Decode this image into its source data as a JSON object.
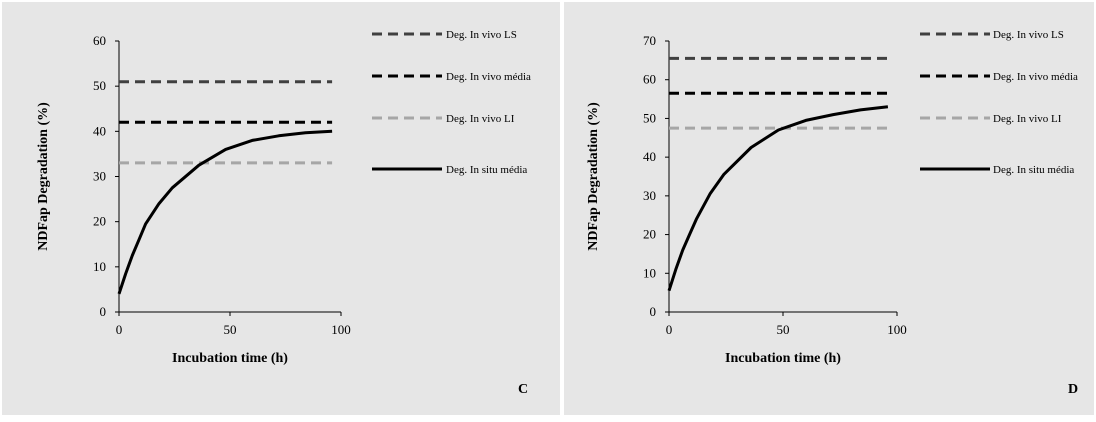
{
  "colors": {
    "panel_bg": "#e6e6e6",
    "ls_line": "#404040",
    "media_line": "#000000",
    "li_line": "#a6a6a6",
    "insitu_line": "#000000"
  },
  "chart_data": [
    {
      "type": "line",
      "panel_label": "C",
      "xlabel": "Incubation time (h)",
      "ylabel": "NDFap Degradation (%)",
      "xlim": [
        0,
        100
      ],
      "ylim": [
        0,
        60
      ],
      "xticks": [
        0,
        50,
        100
      ],
      "yticks": [
        0,
        10,
        20,
        30,
        40,
        50,
        60
      ],
      "grid": false,
      "legend_position": "right",
      "series": [
        {
          "name": "Deg. In vivo LS",
          "style": "dashed",
          "color": "#404040",
          "x": [
            0,
            96
          ],
          "y": [
            51,
            51
          ]
        },
        {
          "name": "Deg. In vivo média",
          "style": "dashed",
          "color": "#000000",
          "x": [
            0,
            96
          ],
          "y": [
            42,
            42
          ]
        },
        {
          "name": "Deg. In vivo LI",
          "style": "dashed",
          "color": "#a6a6a6",
          "x": [
            0,
            96
          ],
          "y": [
            33,
            33
          ]
        },
        {
          "name": "Deg. In situ média",
          "style": "solid",
          "color": "#000000",
          "x": [
            0,
            3,
            6,
            9,
            12,
            18,
            24,
            36,
            48,
            60,
            72,
            84,
            96
          ],
          "y": [
            4,
            8.5,
            12.5,
            16,
            19.5,
            24,
            27.5,
            32.5,
            36,
            38,
            39,
            39.7,
            40
          ]
        }
      ]
    },
    {
      "type": "line",
      "panel_label": "D",
      "xlabel": "Incubation time (h)",
      "ylabel": "NDFap Degradation (%)",
      "xlim": [
        0,
        100
      ],
      "ylim": [
        0,
        70
      ],
      "xticks": [
        0,
        50,
        100
      ],
      "yticks": [
        0,
        10,
        20,
        30,
        40,
        50,
        60,
        70
      ],
      "grid": false,
      "legend_position": "right",
      "series": [
        {
          "name": "Deg. In vivo LS",
          "style": "dashed",
          "color": "#404040",
          "x": [
            0,
            96
          ],
          "y": [
            65.5,
            65.5
          ]
        },
        {
          "name": "Deg. In vivo média",
          "style": "dashed",
          "color": "#000000",
          "x": [
            0,
            96
          ],
          "y": [
            56.5,
            56.5
          ]
        },
        {
          "name": "Deg. In vivo LI",
          "style": "dashed",
          "color": "#a6a6a6",
          "x": [
            0,
            96
          ],
          "y": [
            47.5,
            47.5
          ]
        },
        {
          "name": "Deg. In situ média",
          "style": "solid",
          "color": "#000000",
          "x": [
            0,
            3,
            6,
            9,
            12,
            18,
            24,
            36,
            48,
            60,
            72,
            84,
            96
          ],
          "y": [
            5.5,
            11,
            16,
            20,
            24,
            30.5,
            35.5,
            42.5,
            47,
            49.5,
            51,
            52.2,
            53
          ]
        }
      ]
    }
  ]
}
